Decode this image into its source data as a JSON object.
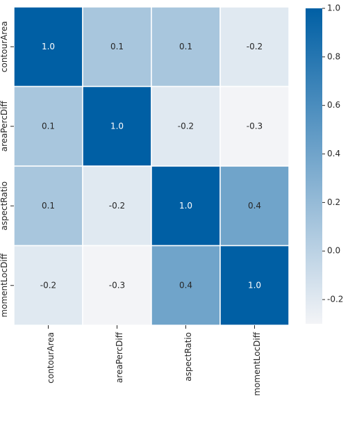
{
  "chart_data": {
    "type": "heatmap",
    "categories": [
      "contourArea",
      "areaPercDiff",
      "aspectRatio",
      "momentLocDiff"
    ],
    "values": [
      [
        1.0,
        0.1,
        0.1,
        -0.2
      ],
      [
        0.1,
        1.0,
        -0.2,
        -0.3
      ],
      [
        0.1,
        -0.2,
        1.0,
        0.4
      ],
      [
        -0.2,
        -0.3,
        0.4,
        1.0
      ]
    ],
    "value_labels": [
      [
        "1.0",
        "0.1",
        "0.1",
        "-0.2"
      ],
      [
        "0.1",
        "1.0",
        "-0.2",
        "-0.3"
      ],
      [
        "0.1",
        "-0.2",
        "1.0",
        "0.4"
      ],
      [
        "-0.2",
        "-0.3",
        "0.4",
        "1.0"
      ]
    ],
    "cmap": [
      "#f3f4f7",
      "#005fa4"
    ],
    "clim": [
      -0.3,
      1.0
    ],
    "colorbar_ticks": [
      {
        "value": 1.0,
        "label": "1.0"
      },
      0.8,
      0.6,
      0.4,
      0.2,
      {
        "value": 0.0,
        "label": "0.0"
      },
      -0.2
    ]
  }
}
